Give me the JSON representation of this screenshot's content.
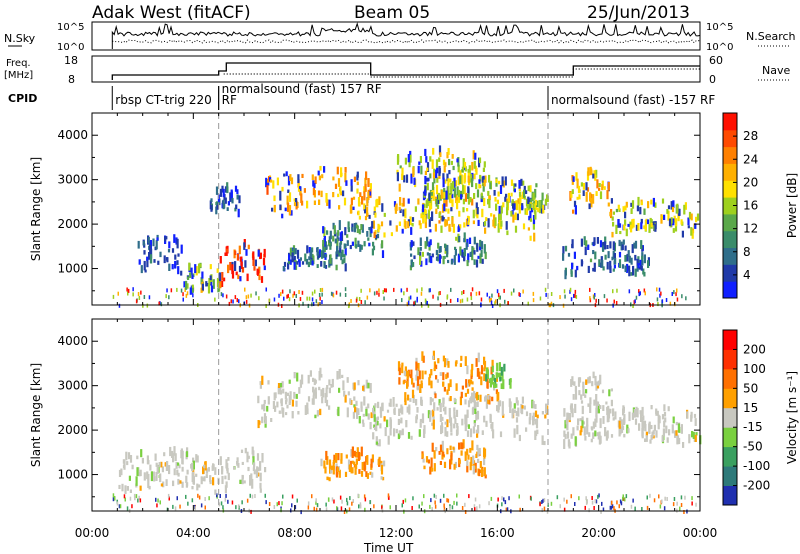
{
  "header": {
    "station": "Adak West (fitACF)",
    "beam": "Beam 05",
    "date": "25/Jun/2013"
  },
  "top_panels": {
    "nsky_label": "N.Sky",
    "nsky_ticks": [
      "10^5",
      "10^0"
    ],
    "nsearch_label": "N.Search",
    "nsearch_ticks": [
      "10^5",
      "10^0"
    ],
    "freq_label": "Freq.",
    "freq_unit": "[MHz]",
    "freq_ticks": [
      "18",
      "8"
    ],
    "nave_label": "Nave",
    "nave_ticks": [
      "60",
      "0"
    ],
    "cpid_label": "CPID",
    "cpid_segments": [
      {
        "label": "rbsp CT-trig 220",
        "start": 0.8,
        "end": 5.0
      },
      {
        "label": "RF",
        "start": 5.0,
        "end": 5.2
      },
      {
        "label": "normalsound (fast) 157 RF",
        "start": 5.0,
        "end": 18.0
      },
      {
        "label": "normalsound (fast) -157 RF",
        "start": 18.0,
        "end": 24.0
      }
    ]
  },
  "chart_data": [
    {
      "type": "heatmap",
      "ylabel": "Slant Range [km]",
      "ylim": [
        180,
        4500
      ],
      "yticks": [
        "1000",
        "2000",
        "3000",
        "4000"
      ],
      "xlim": [
        0,
        24
      ],
      "colorbar": {
        "label": "Power [dB]",
        "ticks": [
          "4",
          "8",
          "12",
          "16",
          "20",
          "24",
          "28"
        ],
        "colors": [
          "#1020ff",
          "#203aa8",
          "#2f6e8a",
          "#3a8c6a",
          "#5aa84a",
          "#9ed01e",
          "#ffe000",
          "#ffb000",
          "#ff8000",
          "#ff4a00",
          "#ff1000"
        ]
      },
      "regions": [
        {
          "t0": 1.8,
          "t1": 3.5,
          "r0": 800,
          "r1": 1500,
          "level": 0.1
        },
        {
          "t0": 3.6,
          "t1": 5.0,
          "r0": 300,
          "r1": 900,
          "level": 0.5
        },
        {
          "t0": 4.6,
          "t1": 5.8,
          "r0": 2100,
          "r1": 2700,
          "level": 0.15
        },
        {
          "t0": 5.0,
          "t1": 6.8,
          "r0": 500,
          "r1": 1300,
          "level": 0.9
        },
        {
          "t0": 6.8,
          "t1": 11.0,
          "r0": 2000,
          "r1": 3000,
          "level": 0.7
        },
        {
          "t0": 7.5,
          "t1": 10.0,
          "r0": 900,
          "r1": 1300,
          "level": 0.25
        },
        {
          "t0": 9.0,
          "t1": 11.5,
          "r0": 1200,
          "r1": 1800,
          "level": 0.3
        },
        {
          "t0": 11.0,
          "t1": 17.5,
          "r0": 1600,
          "r1": 2400,
          "level": 0.6
        },
        {
          "t0": 12.0,
          "t1": 15.5,
          "r0": 2700,
          "r1": 3400,
          "level": 0.55
        },
        {
          "t0": 12.5,
          "t1": 15.5,
          "r0": 950,
          "r1": 1500,
          "level": 0.3
        },
        {
          "t0": 13.0,
          "t1": 18.0,
          "r0": 2200,
          "r1": 2800,
          "level": 0.5
        },
        {
          "t0": 18.8,
          "t1": 20.5,
          "r0": 2100,
          "r1": 3000,
          "level": 0.65
        },
        {
          "t0": 18.5,
          "t1": 22.0,
          "r0": 700,
          "r1": 1400,
          "level": 0.2
        },
        {
          "t0": 20.5,
          "t1": 23.9,
          "r0": 1600,
          "r1": 2300,
          "level": 0.55
        }
      ]
    },
    {
      "type": "heatmap",
      "ylabel": "Slant Range [km]",
      "ylim": [
        180,
        4500
      ],
      "yticks": [
        "1000",
        "2000",
        "3000",
        "4000"
      ],
      "xlim": [
        0,
        24
      ],
      "xlabel": "Time UT",
      "xticks": [
        "00:00",
        "04:00",
        "08:00",
        "12:00",
        "16:00",
        "20:00",
        "00:00"
      ],
      "colorbar": {
        "label": "Velocity [m s⁻¹]",
        "ticks": [
          "200",
          "100",
          "50",
          "15",
          "-15",
          "-50",
          "-100",
          "-200"
        ],
        "colors": [
          "#2030b0",
          "#2e7a7a",
          "#3aa060",
          "#7ad040",
          "#c8c8c0",
          "#ffa000",
          "#ff7000",
          "#ff3000",
          "#ff0000"
        ]
      },
      "regions": [
        {
          "t0": 1.0,
          "t1": 5.0,
          "r0": 500,
          "r1": 1300,
          "kind": "gray"
        },
        {
          "t0": 5.0,
          "t1": 6.8,
          "r0": 500,
          "r1": 1300,
          "kind": "gray"
        },
        {
          "t0": 6.5,
          "t1": 11.0,
          "r0": 2000,
          "r1": 3000,
          "kind": "gray"
        },
        {
          "t0": 9.0,
          "t1": 11.5,
          "r0": 800,
          "r1": 1300,
          "kind": "orange"
        },
        {
          "t0": 11.0,
          "t1": 18.0,
          "r0": 1600,
          "r1": 2500,
          "kind": "gray"
        },
        {
          "t0": 12.0,
          "t1": 16.0,
          "r0": 2500,
          "r1": 3400,
          "kind": "orange"
        },
        {
          "t0": 13.0,
          "t1": 15.5,
          "r0": 900,
          "r1": 1500,
          "kind": "orange"
        },
        {
          "t0": 15.5,
          "t1": 16.5,
          "r0": 2800,
          "r1": 3300,
          "kind": "green"
        },
        {
          "t0": 18.5,
          "t1": 24.0,
          "r0": 1500,
          "r1": 2300,
          "kind": "gray"
        },
        {
          "t0": 18.8,
          "t1": 20.5,
          "r0": 2200,
          "r1": 3000,
          "kind": "gray"
        }
      ]
    }
  ]
}
